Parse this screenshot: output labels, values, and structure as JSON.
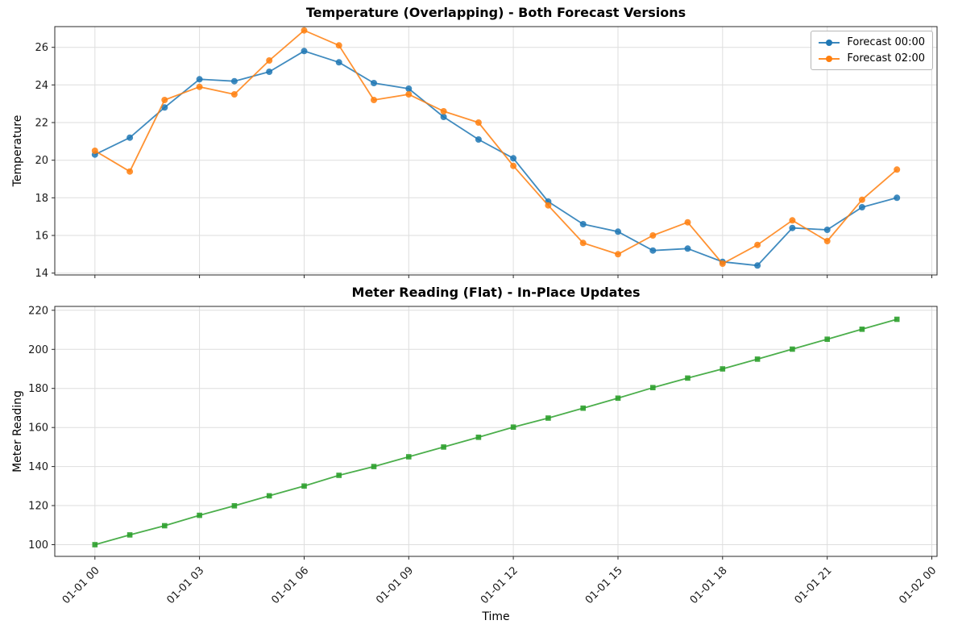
{
  "chart_data": [
    {
      "type": "line",
      "title": "Temperature (Overlapping) - Both Forecast Versions",
      "xlabel": "",
      "ylabel": "Temperature",
      "x": [
        0,
        1,
        2,
        3,
        4,
        5,
        6,
        7,
        8,
        9,
        10,
        11,
        12,
        13,
        14,
        15,
        16,
        17,
        18,
        19,
        20,
        21,
        22,
        23
      ],
      "series": [
        {
          "name": "Forecast 00:00",
          "color": "#1f77b4",
          "marker": "circle",
          "values": [
            20.3,
            21.2,
            22.8,
            24.3,
            24.2,
            24.7,
            25.8,
            25.2,
            24.1,
            23.8,
            22.3,
            21.1,
            20.1,
            17.8,
            16.6,
            16.2,
            15.2,
            15.3,
            14.6,
            14.4,
            16.4,
            16.3,
            17.5,
            18.0
          ]
        },
        {
          "name": "Forecast 02:00",
          "color": "#ff7f0e",
          "marker": "circle",
          "values": [
            20.5,
            19.4,
            23.2,
            23.9,
            23.5,
            25.3,
            26.9,
            26.1,
            23.2,
            23.5,
            22.6,
            22.0,
            19.7,
            17.6,
            15.6,
            15.0,
            16.0,
            16.7,
            14.5,
            15.5,
            16.8,
            15.7,
            17.9,
            19.5
          ]
        }
      ],
      "ylim": [
        13.9,
        27.1
      ],
      "yticks": [
        14,
        16,
        18,
        20,
        22,
        24,
        26
      ],
      "xlim": [
        -1.15,
        24.15
      ],
      "xticks": [
        0,
        3,
        6,
        9,
        12,
        15,
        18,
        21,
        24
      ],
      "xtick_labels": null,
      "grid": true,
      "legend_position": "upper right"
    },
    {
      "type": "line",
      "title": "Meter Reading (Flat) - In-Place Updates",
      "xlabel": "Time",
      "ylabel": "Meter Reading",
      "x": [
        0,
        1,
        2,
        3,
        4,
        5,
        6,
        7,
        8,
        9,
        10,
        11,
        12,
        13,
        14,
        15,
        16,
        17,
        18,
        19,
        20,
        21,
        22,
        23
      ],
      "series": [
        {
          "name": "Meter Reading",
          "color": "#2ca02c",
          "marker": "square",
          "values": [
            100.0,
            105.0,
            109.7,
            115.0,
            119.9,
            125.0,
            130.0,
            135.5,
            140.0,
            145.0,
            150.0,
            155.0,
            160.2,
            164.8,
            169.9,
            175.0,
            180.4,
            185.3,
            190.0,
            195.0,
            200.1,
            205.2,
            210.3,
            215.4
          ]
        }
      ],
      "ylim": [
        94,
        222
      ],
      "yticks": [
        100,
        120,
        140,
        160,
        180,
        200,
        220
      ],
      "xlim": [
        -1.15,
        24.15
      ],
      "xticks": [
        0,
        3,
        6,
        9,
        12,
        15,
        18,
        21,
        24
      ],
      "xtick_labels": [
        "01-01 00",
        "01-01 03",
        "01-01 06",
        "01-01 09",
        "01-01 12",
        "01-01 15",
        "01-01 18",
        "01-01 21",
        "01-02 00"
      ],
      "grid": true,
      "legend_position": null
    }
  ]
}
